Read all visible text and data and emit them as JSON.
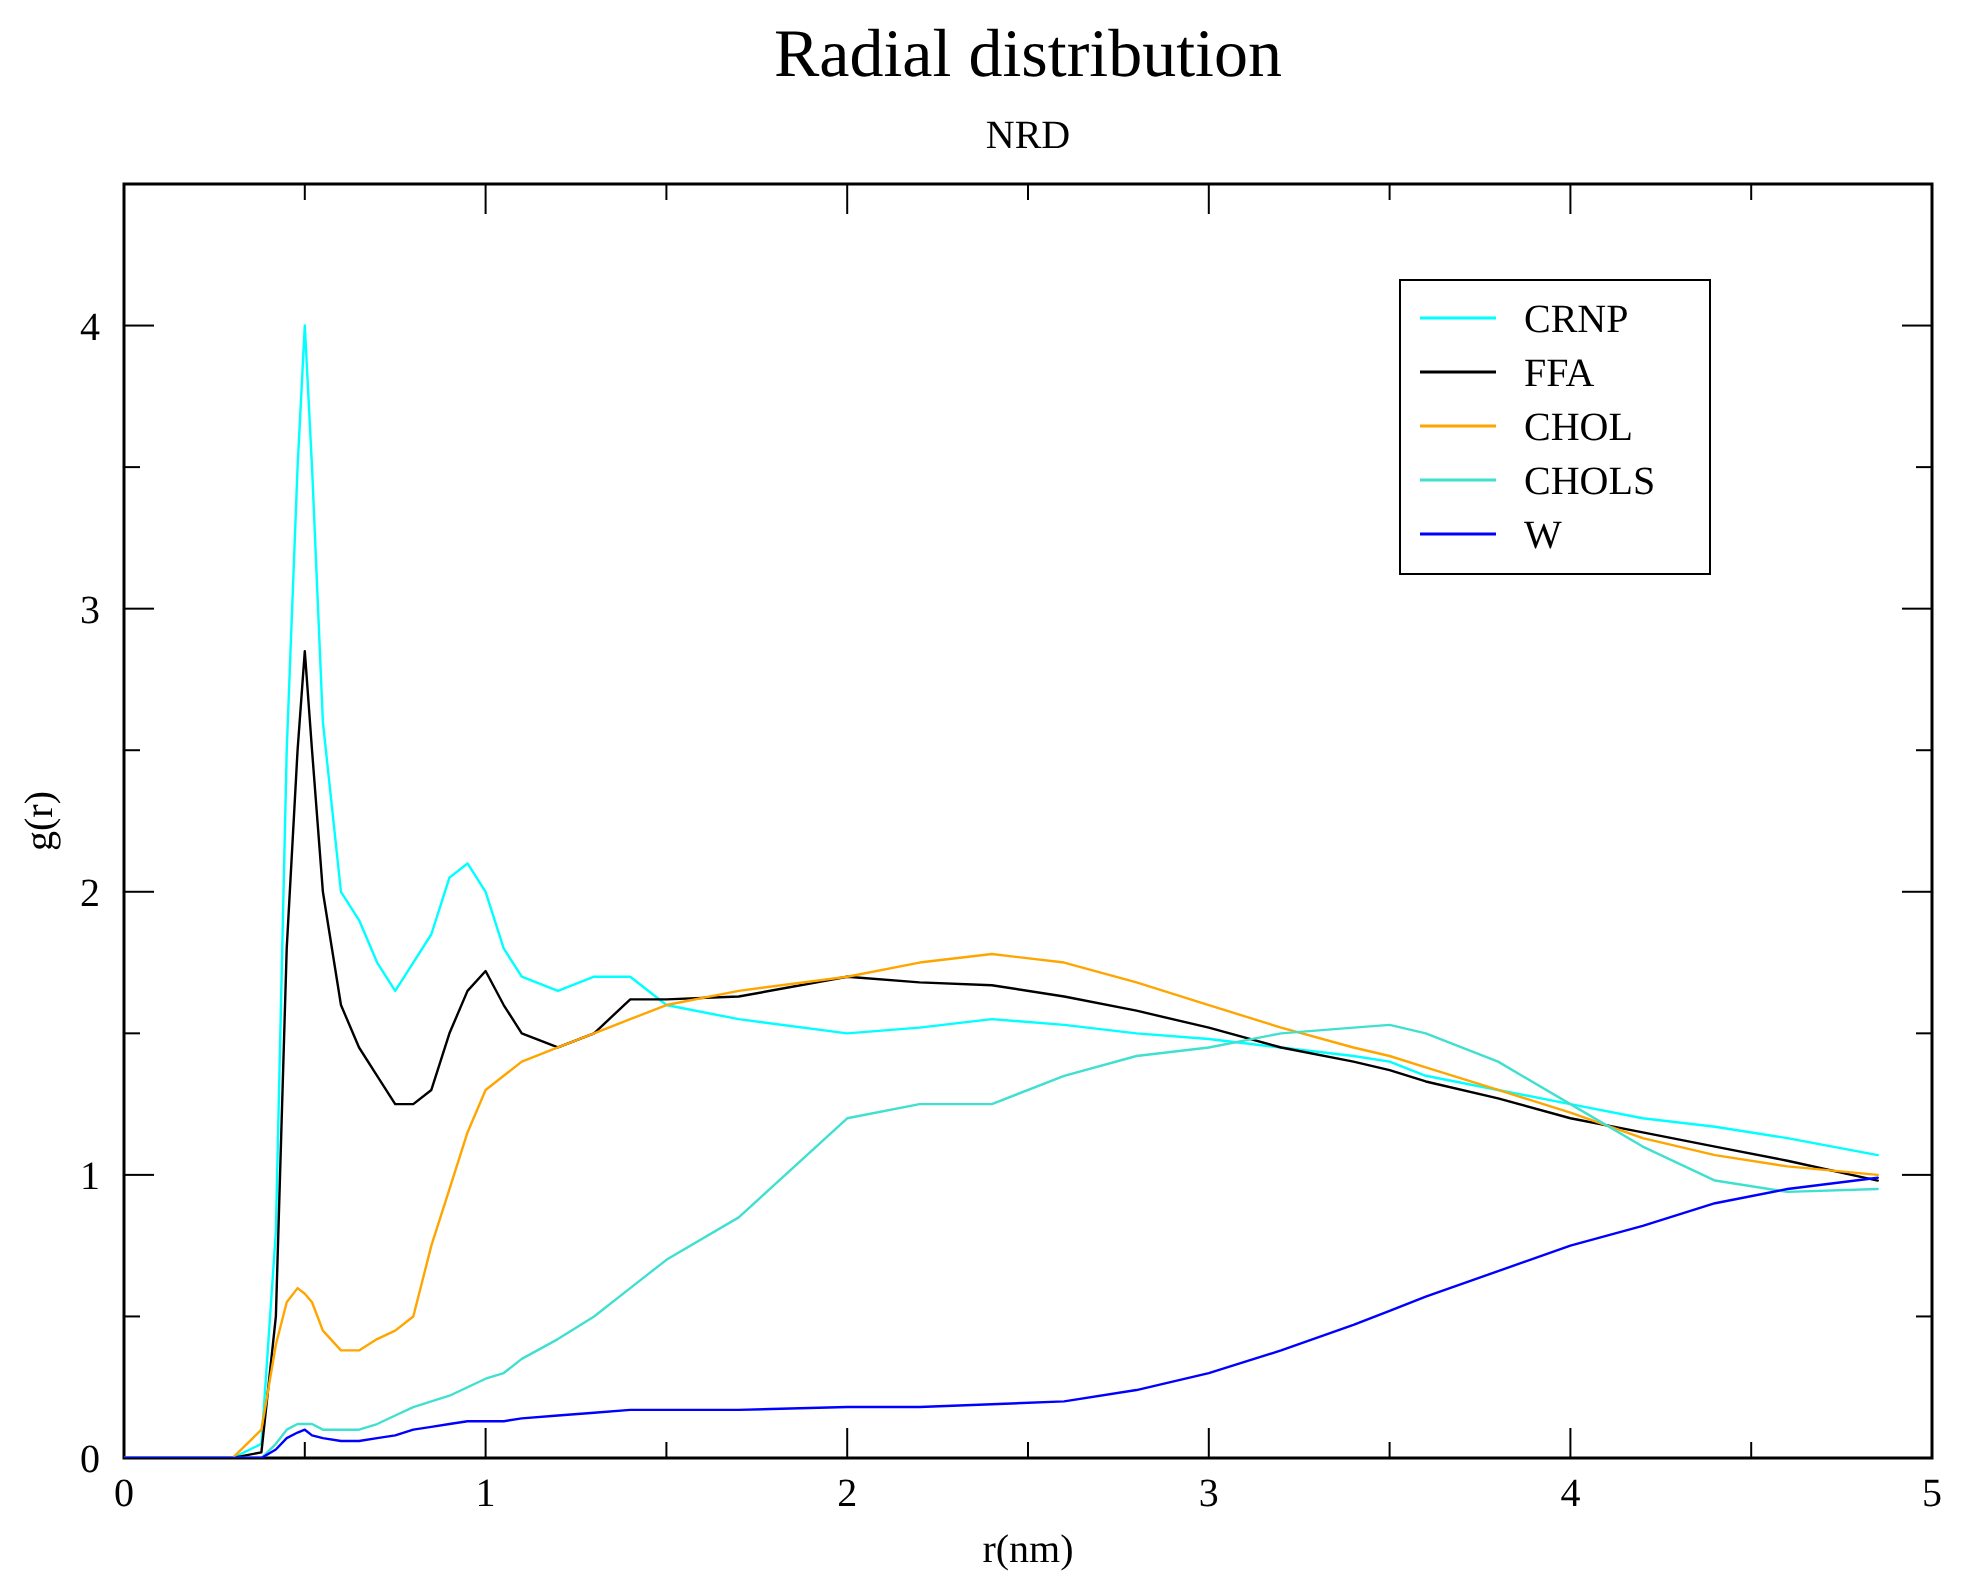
{
  "chart_data": {
    "type": "line",
    "title": "Radial distribution",
    "subtitle": "NRD",
    "xlabel": "r(nm)",
    "ylabel": "g(r)",
    "x": [
      0,
      0.3,
      0.38,
      0.42,
      0.45,
      0.48,
      0.5,
      0.52,
      0.55,
      0.6,
      0.65,
      0.7,
      0.75,
      0.8,
      0.85,
      0.9,
      0.95,
      1.0,
      1.05,
      1.1,
      1.2,
      1.3,
      1.4,
      1.5,
      1.7,
      2.0,
      2.2,
      2.4,
      2.6,
      2.8,
      3.0,
      3.2,
      3.4,
      3.5,
      3.6,
      3.8,
      4.0,
      4.2,
      4.4,
      4.6,
      4.85
    ],
    "xlim": [
      0,
      5
    ],
    "ylim": [
      0,
      4.5
    ],
    "xticks": [
      0,
      {
        "value": 0.5,
        "label": null
      },
      1,
      {
        "value": 1.5,
        "label": null
      },
      2,
      {
        "value": 2.5,
        "label": null
      },
      3,
      {
        "value": 3.5,
        "label": null
      },
      4,
      {
        "value": 4.5,
        "label": null
      },
      5
    ],
    "yticks": [
      0,
      {
        "value": 0.5,
        "label": null
      },
      1,
      {
        "value": 1.5,
        "label": null
      },
      2,
      {
        "value": 2.5,
        "label": null
      },
      3,
      {
        "value": 3.5,
        "label": null
      },
      4,
      {
        "value": 4.5,
        "label": null
      }
    ],
    "legend": "top right",
    "marker": "none",
    "line_style": "solid",
    "grid": false,
    "series": [
      {
        "name": "CRNP",
        "color": "#00ffff",
        "values": [
          0,
          0,
          0.05,
          0.8,
          2.5,
          3.5,
          4.0,
          3.5,
          2.6,
          2.0,
          1.9,
          1.75,
          1.65,
          1.75,
          1.85,
          2.05,
          2.1,
          2.0,
          1.8,
          1.7,
          1.65,
          1.7,
          1.7,
          1.6,
          1.55,
          1.5,
          1.52,
          1.55,
          1.53,
          1.5,
          1.48,
          1.45,
          1.42,
          1.4,
          1.35,
          1.3,
          1.25,
          1.2,
          1.17,
          1.13,
          1.07
        ]
      },
      {
        "name": "FFA",
        "color": "#000000",
        "values": [
          0,
          0,
          0.02,
          0.5,
          1.8,
          2.5,
          2.85,
          2.5,
          2.0,
          1.6,
          1.45,
          1.35,
          1.25,
          1.25,
          1.3,
          1.5,
          1.65,
          1.72,
          1.6,
          1.5,
          1.45,
          1.5,
          1.62,
          1.62,
          1.63,
          1.7,
          1.68,
          1.67,
          1.63,
          1.58,
          1.52,
          1.45,
          1.4,
          1.37,
          1.33,
          1.27,
          1.2,
          1.15,
          1.1,
          1.05,
          0.98
        ]
      },
      {
        "name": "CHOL",
        "color": "#ffa500",
        "values": [
          0,
          0,
          0.1,
          0.4,
          0.55,
          0.6,
          0.58,
          0.55,
          0.45,
          0.38,
          0.38,
          0.42,
          0.45,
          0.5,
          0.75,
          0.95,
          1.15,
          1.3,
          1.35,
          1.4,
          1.45,
          1.5,
          1.55,
          1.6,
          1.65,
          1.7,
          1.75,
          1.78,
          1.75,
          1.68,
          1.6,
          1.52,
          1.45,
          1.42,
          1.38,
          1.3,
          1.22,
          1.13,
          1.07,
          1.03,
          1.0
        ]
      },
      {
        "name": "CHOLS",
        "color": "#40e0d0",
        "values": [
          0,
          0,
          0,
          0.05,
          0.1,
          0.12,
          0.12,
          0.12,
          0.1,
          0.1,
          0.1,
          0.12,
          0.15,
          0.18,
          0.2,
          0.22,
          0.25,
          0.28,
          0.3,
          0.35,
          0.42,
          0.5,
          0.6,
          0.7,
          0.85,
          1.2,
          1.25,
          1.25,
          1.35,
          1.42,
          1.45,
          1.5,
          1.52,
          1.53,
          1.5,
          1.4,
          1.25,
          1.1,
          0.98,
          0.94,
          0.95
        ]
      },
      {
        "name": "W",
        "color": "#0000ff",
        "values": [
          0,
          0,
          0,
          0.03,
          0.07,
          0.09,
          0.1,
          0.08,
          0.07,
          0.06,
          0.06,
          0.07,
          0.08,
          0.1,
          0.11,
          0.12,
          0.13,
          0.13,
          0.13,
          0.14,
          0.15,
          0.16,
          0.17,
          0.17,
          0.17,
          0.18,
          0.18,
          0.19,
          0.2,
          0.24,
          0.3,
          0.38,
          0.47,
          0.52,
          0.57,
          0.66,
          0.75,
          0.82,
          0.9,
          0.95,
          0.99
        ]
      }
    ]
  }
}
